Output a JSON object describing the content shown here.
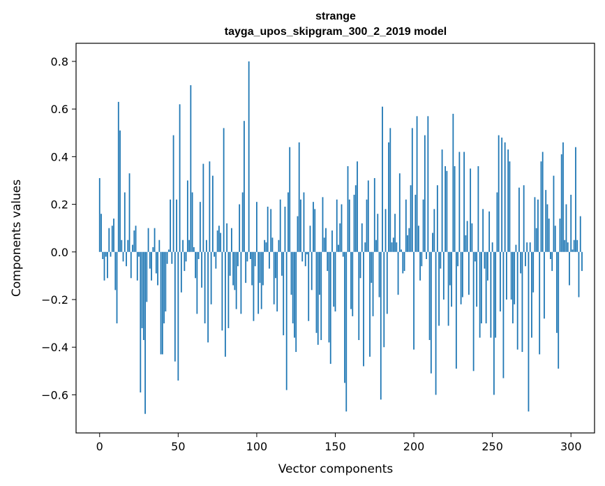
{
  "chart_data": {
    "type": "bar",
    "title": "strange",
    "subtitle": "tayga_upos_skipgram_300_2_2019 model",
    "xlabel": "Vector components",
    "ylabel": "Components values",
    "xlim": [
      -15,
      315
    ],
    "ylim": [
      -0.76,
      0.876
    ],
    "x_ticks": [
      0,
      50,
      100,
      150,
      200,
      250,
      300
    ],
    "y_ticks": [
      -0.6,
      -0.4,
      -0.2,
      0.0,
      0.2,
      0.4,
      0.6,
      0.8
    ],
    "y_tick_labels": [
      "−0.6",
      "−0.4",
      "−0.2",
      "0.0",
      "0.2",
      "0.4",
      "0.6",
      "0.8"
    ],
    "grid": false,
    "bar_color": "#1f77b4",
    "values": [
      0.31,
      0.16,
      -0.03,
      -0.12,
      -0.02,
      -0.11,
      0.1,
      -0.02,
      0.11,
      0.14,
      -0.16,
      -0.3,
      0.63,
      0.51,
      0.05,
      -0.04,
      0.25,
      -0.06,
      0.05,
      0.33,
      -0.11,
      0.03,
      0.09,
      0.11,
      -0.12,
      -0.02,
      -0.59,
      -0.32,
      -0.37,
      -0.68,
      -0.21,
      0.1,
      -0.07,
      -0.12,
      0.02,
      0.1,
      -0.09,
      -0.14,
      0.05,
      -0.43,
      -0.43,
      -0.3,
      -0.25,
      -0.05,
      0.01,
      0.22,
      -0.05,
      0.49,
      -0.46,
      0.22,
      -0.54,
      0.62,
      -0.17,
      0.05,
      -0.08,
      -0.04,
      0.3,
      0.05,
      0.7,
      0.25,
      0.02,
      -0.11,
      -0.26,
      -0.03,
      0.21,
      -0.15,
      0.37,
      -0.3,
      0.05,
      -0.38,
      0.38,
      -0.22,
      0.32,
      -0.02,
      -0.07,
      0.09,
      0.11,
      0.08,
      -0.33,
      0.52,
      -0.44,
      0.12,
      -0.32,
      -0.1,
      0.1,
      -0.14,
      -0.16,
      -0.24,
      -0.06,
      0.2,
      -0.26,
      0.25,
      0.55,
      -0.13,
      -0.04,
      0.8,
      -0.03,
      -0.14,
      -0.29,
      -0.06,
      0.21,
      -0.26,
      -0.13,
      -0.24,
      -0.14,
      0.05,
      0.04,
      0.19,
      -0.07,
      0.18,
      0.06,
      -0.22,
      -0.11,
      -0.25,
      0.05,
      0.22,
      -0.1,
      -0.35,
      0.19,
      -0.58,
      0.25,
      0.44,
      -0.18,
      -0.3,
      -0.36,
      -0.42,
      0.15,
      0.46,
      0.22,
      -0.04,
      0.25,
      -0.06,
      -0.01,
      -0.29,
      0.11,
      -0.16,
      0.21,
      0.18,
      -0.34,
      -0.39,
      -0.18,
      -0.37,
      0.23,
      0.06,
      0.1,
      -0.08,
      -0.38,
      -0.47,
      0.09,
      -0.23,
      -0.25,
      0.22,
      0.03,
      0.12,
      0.2,
      -0.02,
      -0.55,
      -0.67,
      0.36,
      0.22,
      -0.24,
      -0.27,
      0.24,
      0.28,
      0.38,
      -0.37,
      -0.11,
      0.12,
      -0.48,
      0.04,
      0.22,
      0.3,
      -0.44,
      -0.13,
      -0.27,
      0.31,
      0.05,
      0.16,
      -0.19,
      -0.62,
      0.61,
      -0.4,
      0.18,
      -0.26,
      0.46,
      0.52,
      0.04,
      0.06,
      0.16,
      0.04,
      -0.18,
      0.33,
      0.01,
      -0.09,
      -0.08,
      0.22,
      0.07,
      0.1,
      0.28,
      0.52,
      -0.41,
      0.24,
      0.57,
      0.11,
      -0.12,
      -0.06,
      0.22,
      0.49,
      -0.03,
      0.57,
      -0.37,
      -0.51,
      0.08,
      0.18,
      -0.6,
      0.28,
      -0.31,
      -0.07,
      0.43,
      -0.2,
      0.36,
      0.34,
      -0.31,
      -0.14,
      -0.23,
      0.58,
      0.36,
      -0.49,
      -0.06,
      0.42,
      -0.22,
      -0.19,
      0.42,
      0.07,
      0.13,
      -0.18,
      0.35,
      0.12,
      -0.5,
      -0.04,
      -0.23,
      0.36,
      -0.36,
      -0.3,
      0.18,
      -0.07,
      -0.3,
      -0.12,
      0.17,
      -0.36,
      0.04,
      -0.6,
      -0.36,
      0.25,
      0.49,
      -0.25,
      0.48,
      -0.53,
      0.46,
      -0.2,
      0.43,
      0.38,
      -0.2,
      -0.3,
      -0.22,
      0.03,
      -0.41,
      0.27,
      -0.09,
      -0.42,
      0.28,
      -0.06,
      0.04,
      -0.67,
      0.04,
      -0.36,
      -0.17,
      0.23,
      0.1,
      0.22,
      -0.43,
      0.38,
      0.42,
      -0.28,
      0.26,
      0.2,
      0.14,
      -0.03,
      -0.08,
      0.32,
      0.11,
      -0.34,
      -0.49,
      0.14,
      0.41,
      0.46,
      0.05,
      0.2,
      0.04,
      -0.14,
      0.24,
      0.01,
      0.05,
      0.44,
      0.05,
      -0.19,
      0.15,
      -0.08
    ]
  }
}
